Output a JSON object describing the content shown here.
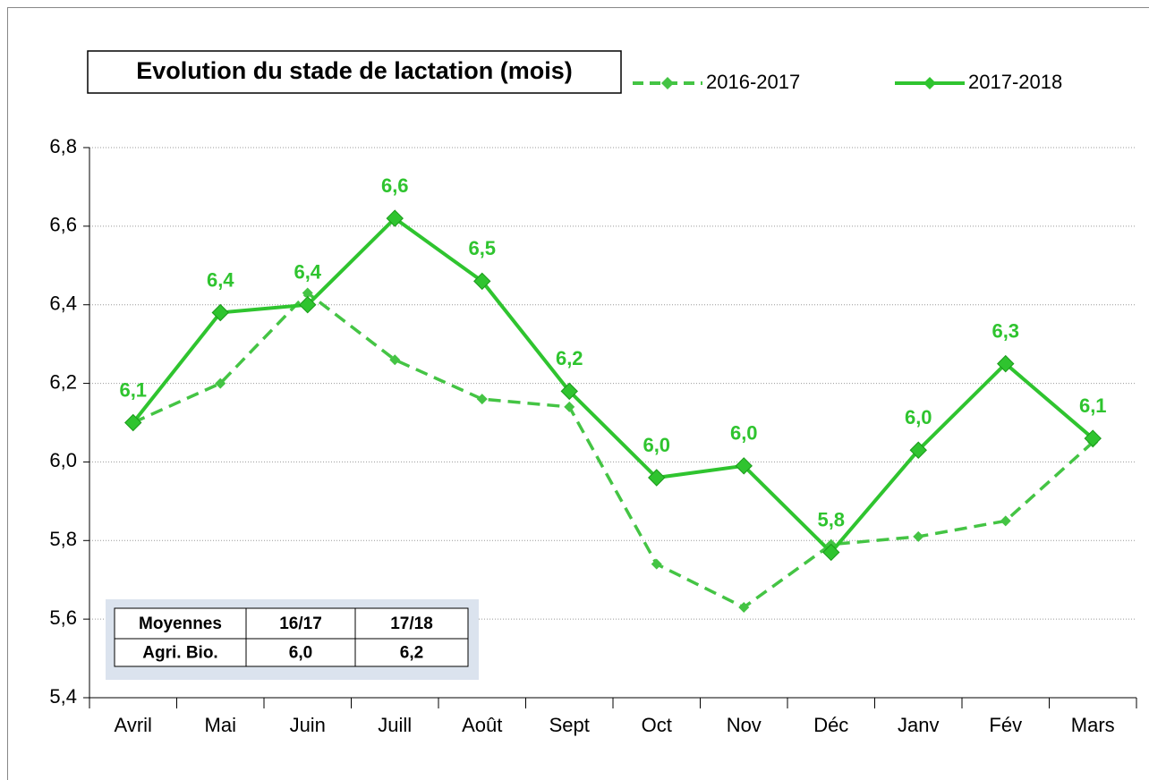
{
  "chart_data": {
    "type": "line",
    "title": "Evolution du stade de lactation (mois)",
    "categories": [
      "Avril",
      "Mai",
      "Juin",
      "Juill",
      "Août",
      "Sept",
      "Oct",
      "Nov",
      "Déc",
      "Janv",
      "Fév",
      "Mars"
    ],
    "series": [
      {
        "name": "2016-2017",
        "color": "#44c444",
        "dashed": true,
        "values": [
          6.1,
          6.2,
          6.43,
          6.26,
          6.16,
          6.14,
          5.74,
          5.63,
          5.79,
          5.81,
          5.85,
          6.05
        ]
      },
      {
        "name": "2017-2018",
        "color": "#2fc42f",
        "dashed": false,
        "values": [
          6.1,
          6.38,
          6.4,
          6.62,
          6.46,
          6.18,
          5.96,
          5.99,
          5.77,
          6.03,
          6.25,
          6.06
        ],
        "value_labels": [
          "6,1",
          "6,4",
          "6,4",
          "6,6",
          "6,5",
          "6,2",
          "6,0",
          "6,0",
          "5,8",
          "6,0",
          "6,3",
          "6,1"
        ]
      }
    ],
    "ylim": [
      5.4,
      6.8
    ],
    "yticks": [
      {
        "value": 5.4,
        "label": "5,4"
      },
      {
        "value": 5.6,
        "label": "5,6"
      },
      {
        "value": 5.8,
        "label": "5,8"
      },
      {
        "value": 6.0,
        "label": "6,0"
      },
      {
        "value": 6.2,
        "label": "6,2"
      },
      {
        "value": 6.4,
        "label": "6,4"
      },
      {
        "value": 6.6,
        "label": "6,6"
      },
      {
        "value": 6.8,
        "label": "6,8"
      }
    ],
    "grid": true,
    "legend": "top",
    "summary_table": {
      "header": [
        "Moyennes",
        "16/17",
        "17/18"
      ],
      "rows": [
        [
          "Agri. Bio.",
          "6,0",
          "6,2"
        ]
      ]
    }
  }
}
